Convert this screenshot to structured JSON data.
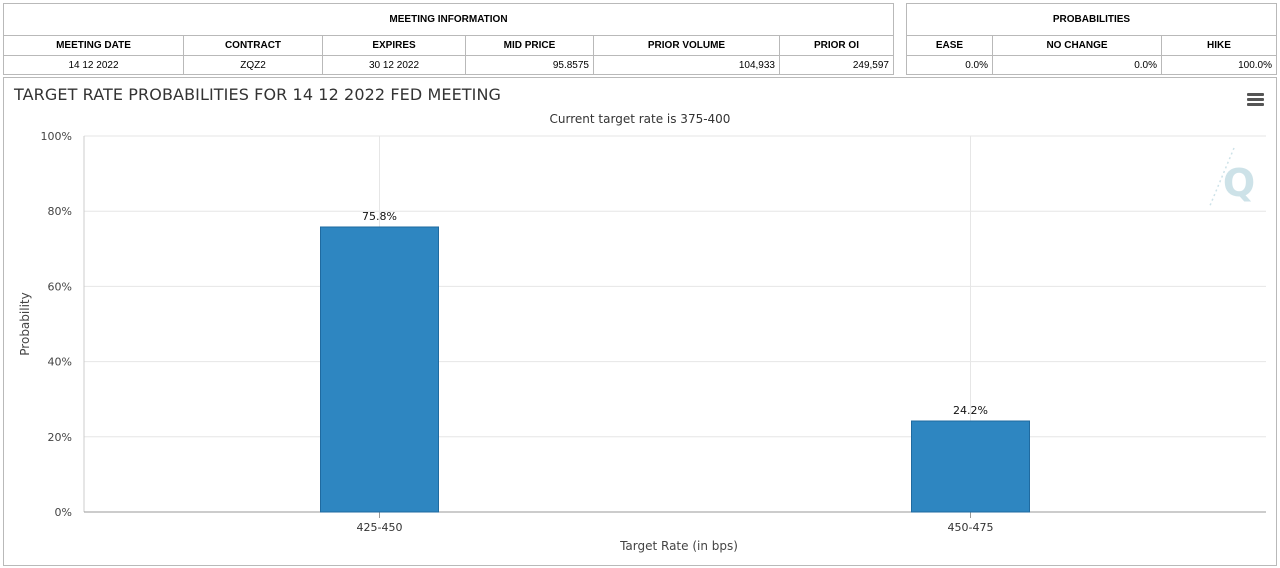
{
  "meeting_info": {
    "title": "MEETING INFORMATION",
    "headers": [
      "MEETING DATE",
      "CONTRACT",
      "EXPIRES",
      "MID PRICE",
      "PRIOR VOLUME",
      "PRIOR OI"
    ],
    "values": [
      "14 12 2022",
      "ZQZ2",
      "30 12 2022",
      "95.8575",
      "104,933",
      "249,597"
    ]
  },
  "probabilities": {
    "title": "PROBABILITIES",
    "headers": [
      "EASE",
      "NO CHANGE",
      "HIKE"
    ],
    "values": [
      "0.0%",
      "0.0%",
      "100.0%"
    ]
  },
  "chart": {
    "title": "TARGET RATE PROBABILITIES FOR 14 12 2022 FED MEETING",
    "subtitle": "Current target rate is 375-400"
  },
  "chart_data": {
    "type": "bar",
    "title": "TARGET RATE PROBABILITIES FOR 14 12 2022 FED MEETING",
    "subtitle": "Current target rate is 375-400",
    "xlabel": "Target Rate (in bps)",
    "ylabel": "Probability",
    "categories": [
      "425-450",
      "450-475"
    ],
    "values": [
      75.8,
      24.2
    ],
    "data_labels": [
      "75.8%",
      "24.2%"
    ],
    "ylim": [
      0,
      100
    ],
    "yticks": [
      0,
      20,
      40,
      60,
      80,
      100
    ],
    "ytick_labels": [
      "0%",
      "20%",
      "40%",
      "60%",
      "80%",
      "100%"
    ],
    "grid": true,
    "bar_color": "#2e86c1"
  },
  "colors": {
    "bar": "#2e86c1",
    "grid": "#e6e6e6",
    "watermark": "#c8dfe6"
  },
  "icons": {
    "menu": "hamburger-menu-icon",
    "watermark": "quikstrike-q-logo"
  }
}
